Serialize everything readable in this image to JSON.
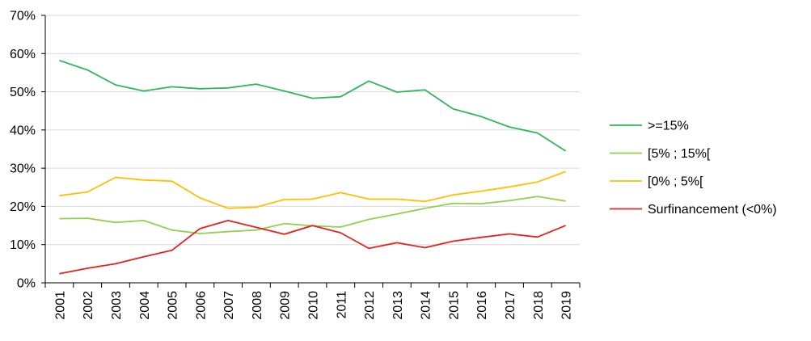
{
  "chart_data": {
    "type": "line",
    "title": "",
    "xlabel": "",
    "ylabel": "",
    "categories": [
      "2001",
      "2002",
      "2003",
      "2004",
      "2005",
      "2006",
      "2007",
      "2008",
      "2009",
      "2010",
      "2011",
      "2012",
      "2013",
      "2014",
      "2015",
      "2016",
      "2017",
      "2018",
      "2019"
    ],
    "ylim": [
      0,
      70
    ],
    "yticks": [
      "0%",
      "10%",
      "20%",
      "30%",
      "40%",
      "50%",
      "60%",
      "70%"
    ],
    "grid": true,
    "legend_position": "right",
    "series": [
      {
        "name": ">=15%",
        "color": "#2db85c",
        "values": [
          58.2,
          55.7,
          51.8,
          50.2,
          51.3,
          50.8,
          51.0,
          52.0,
          50.2,
          48.3,
          48.7,
          52.8,
          49.9,
          50.5,
          45.5,
          43.5,
          40.8,
          39.2,
          34.5
        ]
      },
      {
        "name": "[5% ; 15%[",
        "color": "#92d050",
        "values": [
          16.8,
          16.9,
          15.8,
          16.3,
          13.8,
          12.9,
          13.4,
          13.8,
          15.5,
          14.9,
          14.6,
          16.6,
          18.0,
          19.5,
          20.8,
          20.7,
          21.5,
          22.6,
          21.4
        ]
      },
      {
        "name": "[0% ; 5%[",
        "color": "#ffc000",
        "values": [
          22.8,
          23.8,
          27.6,
          26.9,
          26.6,
          22.2,
          19.5,
          19.8,
          21.8,
          21.9,
          23.6,
          21.9,
          21.9,
          21.3,
          23.0,
          24.0,
          25.1,
          26.4,
          29.1
        ]
      },
      {
        "name": "Surfinancement (<0%)",
        "color": "#e8201e",
        "values": [
          2.4,
          3.8,
          5.0,
          6.8,
          8.5,
          14.2,
          16.3,
          14.5,
          12.7,
          15.0,
          13.1,
          9.0,
          10.5,
          9.2,
          10.9,
          11.9,
          12.8,
          12.0,
          15.0
        ]
      }
    ]
  }
}
